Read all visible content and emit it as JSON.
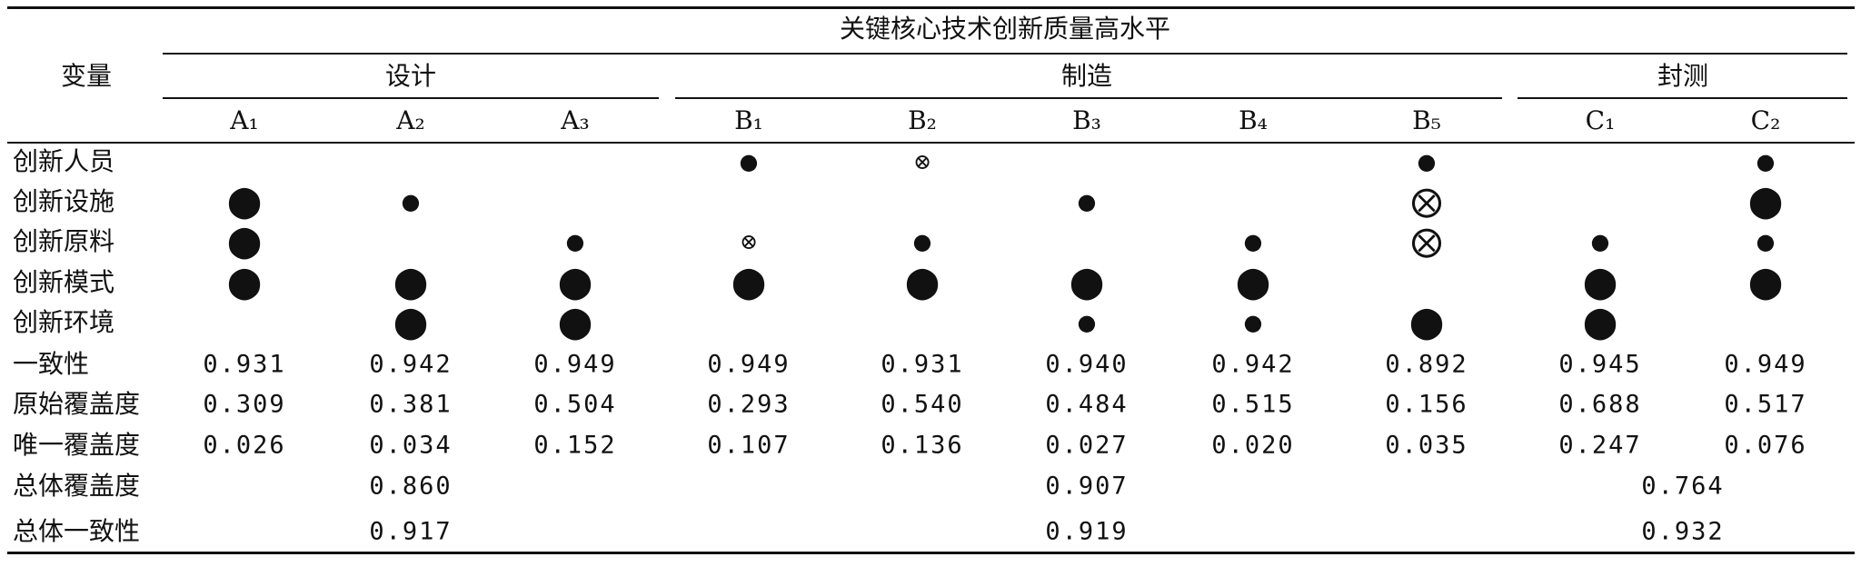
{
  "table": {
    "title": "关键核心技术创新质量高水平",
    "row_header": "变量",
    "groups": [
      "设计",
      "制造",
      "封测"
    ],
    "columns": [
      "A₁",
      "A₂",
      "A₃",
      "B₁",
      "B₂",
      "B₃",
      "B₄",
      "B₅",
      "C₁",
      "C₂"
    ],
    "rows": [
      {
        "label": "创新人员",
        "cells": [
          null,
          null,
          null,
          "●",
          "⊗",
          null,
          null,
          "●",
          null,
          "●"
        ]
      },
      {
        "label": "创新设施",
        "cells": [
          "⬤",
          "●",
          null,
          null,
          null,
          "●",
          null,
          "⨂",
          null,
          "⬤"
        ]
      },
      {
        "label": "创新原料",
        "cells": [
          "⬤",
          null,
          "●",
          "⊗",
          "●",
          null,
          "●",
          "⨂",
          "●",
          "●"
        ]
      },
      {
        "label": "创新模式",
        "cells": [
          "⬤",
          "⬤",
          "⬤",
          "⬤",
          "⬤",
          "⬤",
          "⬤",
          null,
          "⬤",
          "⬤"
        ]
      },
      {
        "label": "创新环境",
        "cells": [
          null,
          "⬤",
          "⬤",
          null,
          null,
          "●",
          "●",
          "⬤",
          "⬤",
          null
        ]
      },
      {
        "label": "一致性",
        "cells": [
          "0.931",
          "0.942",
          "0.949",
          "0.949",
          "0.931",
          "0.940",
          "0.942",
          "0.892",
          "0.945",
          "0.949"
        ]
      },
      {
        "label": "原始覆盖度",
        "cells": [
          "0.309",
          "0.381",
          "0.504",
          "0.293",
          "0.540",
          "0.484",
          "0.515",
          "0.156",
          "0.688",
          "0.517"
        ]
      },
      {
        "label": "唯一覆盖度",
        "cells": [
          "0.026",
          "0.034",
          "0.152",
          "0.107",
          "0.136",
          "0.027",
          "0.020",
          "0.035",
          "0.247",
          "0.076"
        ]
      }
    ],
    "totals": [
      {
        "label": "总体覆盖度",
        "values": [
          "0.860",
          "0.907",
          "0.764"
        ]
      },
      {
        "label": "总体一致性",
        "values": [
          "0.917",
          "0.919",
          "0.932"
        ]
      }
    ]
  }
}
